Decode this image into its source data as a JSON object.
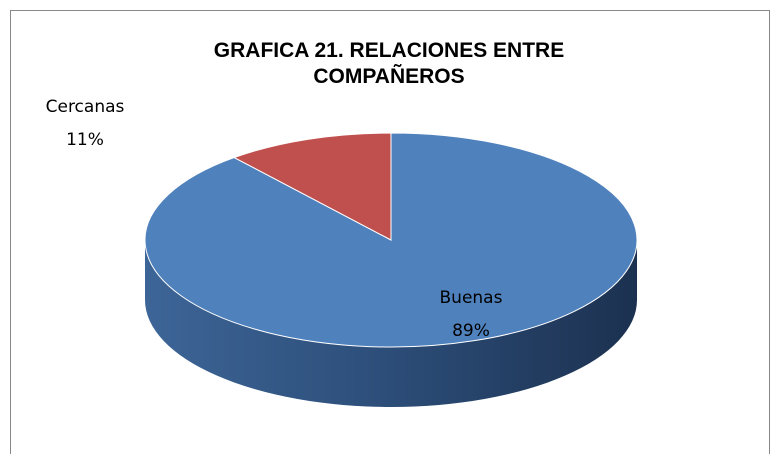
{
  "chart_data": {
    "type": "pie",
    "title": "GRAFICA 21. RELACIONES ENTRE COMPAÑEROS",
    "categories": [
      "Buenas",
      "Cercanas"
    ],
    "values": [
      89,
      11
    ],
    "value_labels": [
      "89%",
      "11%"
    ],
    "colors": [
      "#4f81bd",
      "#c0504d"
    ],
    "three_d": true
  }
}
